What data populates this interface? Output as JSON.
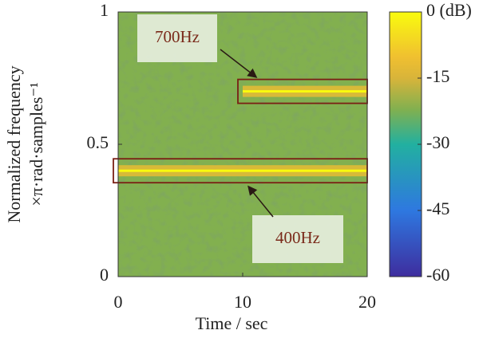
{
  "chart_data": {
    "type": "spectrogram",
    "xlabel": "Time / sec",
    "ylabel": [
      "Normalized frequency",
      "×π·rad·samples⁻¹"
    ],
    "xlim": [
      0,
      20
    ],
    "xticks": [
      0,
      10,
      20
    ],
    "ylim": [
      0,
      1
    ],
    "yticks": [
      0,
      0.5,
      1
    ],
    "clim": [
      -60,
      0
    ],
    "cticks": [
      {
        "value": 0,
        "label": "0 (dB)"
      },
      -15,
      -30,
      -45,
      -60
    ],
    "noise_level": -22,
    "tones": [
      {
        "label": "700Hz",
        "frequency": 0.7,
        "start": 10,
        "end": 20,
        "level": 0
      },
      {
        "label": "400Hz",
        "frequency": 0.4,
        "start": 0,
        "end": 20,
        "level": 0
      }
    ]
  }
}
